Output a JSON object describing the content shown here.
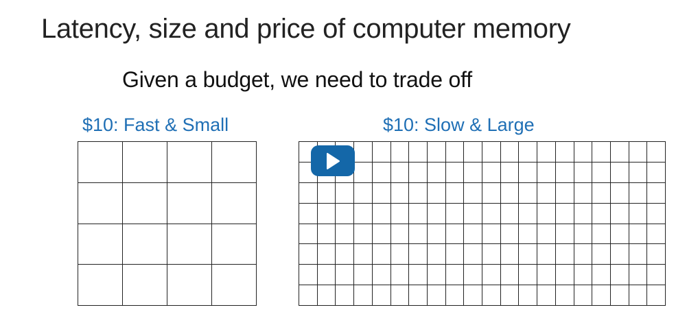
{
  "slide": {
    "title": "Latency, size and price of computer memory",
    "subtitle": "Given a budget, we need to trade off"
  },
  "panels": [
    {
      "label": "$10: Fast & Small",
      "rows": 4,
      "columns": 4
    },
    {
      "label": "$10: Slow & Large",
      "rows": 8,
      "columns": 20
    }
  ],
  "video_overlay": {
    "icon": "play-icon"
  },
  "colors": {
    "title_text": "#222222",
    "label_text": "#1f6fb5",
    "grid_lines": "#222222",
    "play_button_bg": "#1467a8",
    "background": "#ffffff"
  }
}
